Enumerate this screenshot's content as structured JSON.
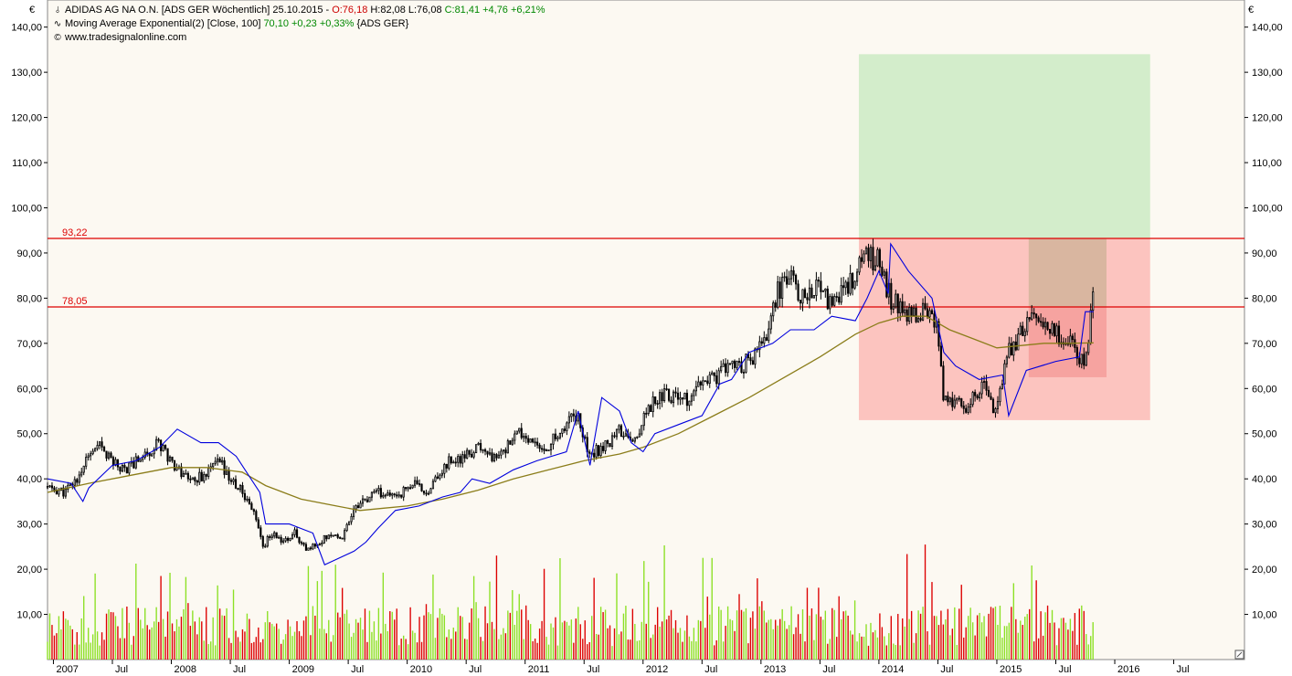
{
  "header": {
    "row1": {
      "icon": "candlestick-icon",
      "name": "ADIDAS AG NA O.N. [ADS GER  Wöchentlich] 25.10.2015 -",
      "open": "O:76,18",
      "high": "H:82,08",
      "low": "L:76,08",
      "close": "C:81,41",
      "change": "+4,76",
      "change_pct": "+6,21%"
    },
    "row2": {
      "icon": "moving-average-icon",
      "name": "Moving Average Exponential(2) [Close, 100]",
      "value": "70,10",
      "change": "+0,23",
      "change_pct": "+0,33%",
      "suffix": "{ADS GER}"
    },
    "row3": {
      "icon": "copyright-icon",
      "text": "www.tradesignalonline.com"
    }
  },
  "currency_left": "€",
  "currency_right": "€",
  "colors": {
    "background": "#fcf9f2",
    "up": "#8ce024",
    "down": "#dd0000",
    "ema": "#8b7d1a",
    "stop_line": "#0000dd",
    "hline": "#dd0000",
    "green_zone": "#d3edcb",
    "red_zone": "#fcc4bf",
    "tan_zone": "#d9b6a0",
    "dark_red_zone": "#f6a3a0"
  },
  "chart_data": {
    "type": "candlestick",
    "timeframe": "weekly",
    "ylim": [
      0,
      146
    ],
    "y_ticks": [
      10,
      20,
      30,
      40,
      50,
      60,
      70,
      80,
      90,
      100,
      110,
      120,
      130,
      140
    ],
    "y_tick_labels": [
      "10,00",
      "20,00",
      "30,00",
      "40,00",
      "50,00",
      "60,00",
      "70,00",
      "80,00",
      "90,00",
      "100,00",
      "110,00",
      "120,00",
      "130,00",
      "140,00"
    ],
    "x_range": [
      2006.95,
      2017.1
    ],
    "x_ticks": [
      {
        "label": "2007",
        "t": 2007.0
      },
      {
        "label": "Jul",
        "t": 2007.5
      },
      {
        "label": "2008",
        "t": 2008.0
      },
      {
        "label": "Jul",
        "t": 2008.5
      },
      {
        "label": "2009",
        "t": 2009.0
      },
      {
        "label": "Jul",
        "t": 2009.5
      },
      {
        "label": "2010",
        "t": 2010.0
      },
      {
        "label": "Jul",
        "t": 2010.5
      },
      {
        "label": "2011",
        "t": 2011.0
      },
      {
        "label": "Jul",
        "t": 2011.5
      },
      {
        "label": "2012",
        "t": 2012.0
      },
      {
        "label": "Jul",
        "t": 2012.5
      },
      {
        "label": "2013",
        "t": 2013.0
      },
      {
        "label": "Jul",
        "t": 2013.5
      },
      {
        "label": "2014",
        "t": 2014.0
      },
      {
        "label": "Jul",
        "t": 2014.5
      },
      {
        "label": "2015",
        "t": 2015.0
      },
      {
        "label": "Jul",
        "t": 2015.5
      },
      {
        "label": "2016",
        "t": 2016.0
      },
      {
        "label": "Jul",
        "t": 2016.5
      }
    ],
    "price_path": [
      [
        2006.95,
        38
      ],
      [
        2007.1,
        37
      ],
      [
        2007.2,
        40
      ],
      [
        2007.3,
        45
      ],
      [
        2007.4,
        47
      ],
      [
        2007.5,
        44
      ],
      [
        2007.6,
        42
      ],
      [
        2007.75,
        45
      ],
      [
        2007.9,
        48
      ],
      [
        2008.0,
        44
      ],
      [
        2008.1,
        41
      ],
      [
        2008.2,
        40
      ],
      [
        2008.3,
        41
      ],
      [
        2008.4,
        44
      ],
      [
        2008.5,
        40
      ],
      [
        2008.6,
        37
      ],
      [
        2008.7,
        33
      ],
      [
        2008.78,
        25
      ],
      [
        2008.85,
        28
      ],
      [
        2008.95,
        26
      ],
      [
        2009.05,
        28
      ],
      [
        2009.15,
        24
      ],
      [
        2009.25,
        26
      ],
      [
        2009.35,
        28
      ],
      [
        2009.45,
        27
      ],
      [
        2009.55,
        34
      ],
      [
        2009.65,
        35
      ],
      [
        2009.75,
        37
      ],
      [
        2009.85,
        36
      ],
      [
        2009.95,
        37
      ],
      [
        2010.05,
        39
      ],
      [
        2010.15,
        37
      ],
      [
        2010.25,
        40
      ],
      [
        2010.35,
        44
      ],
      [
        2010.45,
        44
      ],
      [
        2010.55,
        46
      ],
      [
        2010.65,
        47
      ],
      [
        2010.75,
        44
      ],
      [
        2010.85,
        47
      ],
      [
        2010.95,
        50
      ],
      [
        2011.05,
        48
      ],
      [
        2011.15,
        46
      ],
      [
        2011.25,
        49
      ],
      [
        2011.35,
        52
      ],
      [
        2011.45,
        55
      ],
      [
        2011.52,
        47
      ],
      [
        2011.6,
        46
      ],
      [
        2011.7,
        48
      ],
      [
        2011.8,
        51
      ],
      [
        2011.9,
        48
      ],
      [
        2012.0,
        53
      ],
      [
        2012.1,
        58
      ],
      [
        2012.2,
        59
      ],
      [
        2012.3,
        58
      ],
      [
        2012.4,
        57
      ],
      [
        2012.5,
        61
      ],
      [
        2012.6,
        62
      ],
      [
        2012.7,
        65
      ],
      [
        2012.8,
        65
      ],
      [
        2012.9,
        66
      ],
      [
        2013.0,
        69
      ],
      [
        2013.05,
        72
      ],
      [
        2013.1,
        78
      ],
      [
        2013.15,
        82
      ],
      [
        2013.25,
        84
      ],
      [
        2013.35,
        80
      ],
      [
        2013.45,
        83
      ],
      [
        2013.55,
        80
      ],
      [
        2013.65,
        80
      ],
      [
        2013.75,
        83
      ],
      [
        2013.85,
        87
      ],
      [
        2013.9,
        89
      ],
      [
        2014.0,
        88
      ],
      [
        2014.05,
        83
      ],
      [
        2014.1,
        80
      ],
      [
        2014.2,
        77
      ],
      [
        2014.3,
        77
      ],
      [
        2014.4,
        77
      ],
      [
        2014.45,
        75
      ],
      [
        2014.5,
        72
      ],
      [
        2014.55,
        58
      ],
      [
        2014.65,
        57
      ],
      [
        2014.75,
        55
      ],
      [
        2014.8,
        58
      ],
      [
        2014.9,
        62
      ],
      [
        2014.95,
        57
      ],
      [
        2015.0,
        55
      ],
      [
        2015.05,
        62
      ],
      [
        2015.1,
        68
      ],
      [
        2015.2,
        72
      ],
      [
        2015.3,
        76
      ],
      [
        2015.4,
        74
      ],
      [
        2015.5,
        72
      ],
      [
        2015.6,
        69
      ],
      [
        2015.65,
        72
      ],
      [
        2015.7,
        66
      ],
      [
        2015.75,
        65
      ],
      [
        2015.8,
        76
      ],
      [
        2015.82,
        81.41
      ]
    ],
    "ema_path": [
      [
        2006.95,
        37
      ],
      [
        2007.3,
        39
      ],
      [
        2007.6,
        40.5
      ],
      [
        2008.0,
        42.5
      ],
      [
        2008.3,
        42.5
      ],
      [
        2008.6,
        41.5
      ],
      [
        2008.8,
        38.5
      ],
      [
        2009.1,
        35.5
      ],
      [
        2009.4,
        34
      ],
      [
        2009.6,
        33
      ],
      [
        2009.8,
        33.5
      ],
      [
        2010.0,
        34
      ],
      [
        2010.3,
        35.5
      ],
      [
        2010.6,
        37.5
      ],
      [
        2010.9,
        40
      ],
      [
        2011.2,
        42
      ],
      [
        2011.5,
        44
      ],
      [
        2011.8,
        45.5
      ],
      [
        2012.0,
        47
      ],
      [
        2012.3,
        50
      ],
      [
        2012.6,
        54
      ],
      [
        2012.9,
        58
      ],
      [
        2013.2,
        62.5
      ],
      [
        2013.5,
        67
      ],
      [
        2013.8,
        72
      ],
      [
        2014.0,
        74.5
      ],
      [
        2014.2,
        76
      ],
      [
        2014.4,
        76
      ],
      [
        2014.6,
        73
      ],
      [
        2014.8,
        71
      ],
      [
        2015.0,
        69
      ],
      [
        2015.2,
        69.5
      ],
      [
        2015.4,
        70
      ],
      [
        2015.6,
        70
      ],
      [
        2015.82,
        70.1
      ]
    ],
    "stop_path": [
      [
        2006.95,
        40
      ],
      [
        2007.15,
        39
      ],
      [
        2007.25,
        35
      ],
      [
        2007.3,
        38
      ],
      [
        2007.5,
        43
      ],
      [
        2007.7,
        44
      ],
      [
        2007.9,
        47
      ],
      [
        2008.05,
        51
      ],
      [
        2008.25,
        48
      ],
      [
        2008.4,
        48
      ],
      [
        2008.55,
        45
      ],
      [
        2008.75,
        37
      ],
      [
        2008.8,
        30
      ],
      [
        2009.0,
        30
      ],
      [
        2009.2,
        28
      ],
      [
        2009.3,
        21
      ],
      [
        2009.55,
        24
      ],
      [
        2009.65,
        26
      ],
      [
        2009.75,
        29
      ],
      [
        2009.9,
        33
      ],
      [
        2010.1,
        34
      ],
      [
        2010.3,
        36
      ],
      [
        2010.45,
        37
      ],
      [
        2010.55,
        40
      ],
      [
        2010.7,
        39
      ],
      [
        2010.9,
        42
      ],
      [
        2011.1,
        44
      ],
      [
        2011.35,
        46
      ],
      [
        2011.45,
        55
      ],
      [
        2011.55,
        43
      ],
      [
        2011.65,
        58
      ],
      [
        2011.8,
        55
      ],
      [
        2011.9,
        48
      ],
      [
        2012.0,
        46
      ],
      [
        2012.1,
        50
      ],
      [
        2012.3,
        52
      ],
      [
        2012.5,
        54
      ],
      [
        2012.65,
        61
      ],
      [
        2012.75,
        62
      ],
      [
        2012.9,
        68
      ],
      [
        2013.1,
        70
      ],
      [
        2013.25,
        73
      ],
      [
        2013.45,
        73
      ],
      [
        2013.6,
        76
      ],
      [
        2013.8,
        75
      ],
      [
        2013.9,
        80
      ],
      [
        2014.0,
        86
      ],
      [
        2014.08,
        81
      ],
      [
        2014.1,
        92
      ],
      [
        2014.25,
        86
      ],
      [
        2014.45,
        80
      ],
      [
        2014.55,
        68
      ],
      [
        2014.65,
        65
      ],
      [
        2014.85,
        62
      ],
      [
        2015.05,
        63
      ],
      [
        2015.1,
        54
      ],
      [
        2015.25,
        64
      ],
      [
        2015.5,
        66
      ],
      [
        2015.7,
        67
      ],
      [
        2015.75,
        77
      ],
      [
        2015.82,
        77
      ]
    ],
    "volume_seed": 11,
    "volume_scale_max": 146,
    "horizontal_lines": [
      {
        "label": "93,22",
        "value": 93.22
      },
      {
        "label": "78,05",
        "value": 78.05
      }
    ],
    "zones": [
      {
        "name": "green-target-zone",
        "t1": 2013.83,
        "t2": 2016.3,
        "y1": 93.22,
        "y2": 134,
        "color": "#d3edcb"
      },
      {
        "name": "red-risk-zone",
        "t1": 2013.83,
        "t2": 2016.3,
        "y1": 53,
        "y2": 93.22,
        "color": "#fcc4bf"
      },
      {
        "name": "tan-zone",
        "t1": 2015.27,
        "t2": 2015.93,
        "y1": 78.05,
        "y2": 93.22,
        "color": "#d9b6a0"
      },
      {
        "name": "dark-red-zone",
        "t1": 2015.27,
        "t2": 2015.93,
        "y1": 62.5,
        "y2": 78.05,
        "color": "#f6a3a0"
      }
    ]
  }
}
